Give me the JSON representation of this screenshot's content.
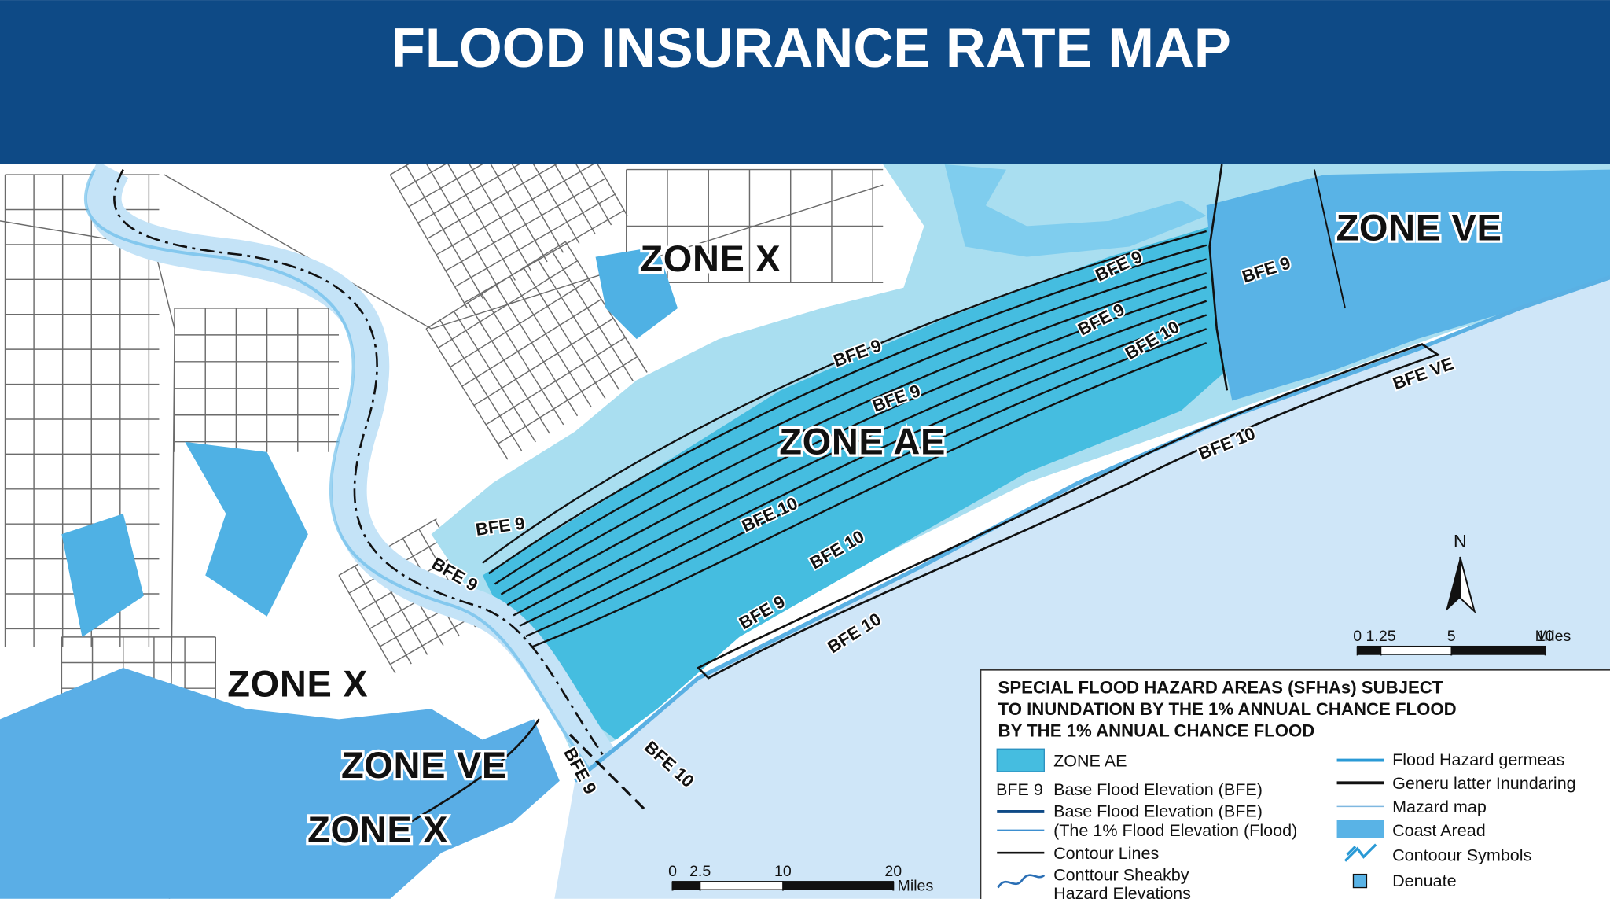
{
  "header": {
    "title": "FLOOD INSURANCE RATE MAP"
  },
  "map_labels": {
    "zones": [
      "ZONE X",
      "ZONE VE",
      "ZONE AE",
      "ZONE X",
      "ZONE VE",
      "ZONE X"
    ],
    "bfe": [
      "BFE 9",
      "BFE 9",
      "BFE 9",
      "BFE 10",
      "BFE 9",
      "BFE 9",
      "BFE VE",
      "BFE 10",
      "BFE 9",
      "BFE 10",
      "BFE 9",
      "BFE 10",
      "BFE 9",
      "BFE 10",
      "BFE 9",
      "BFE 10"
    ]
  },
  "north_arrow": "N",
  "scale_bars": [
    {
      "ticks": [
        0,
        1.25,
        5,
        10
      ],
      "unit": "Miles"
    },
    {
      "ticks": [
        0,
        2.5,
        10,
        20
      ],
      "unit": "Miles"
    }
  ],
  "legend": {
    "title": [
      "SPECIAL FLOOD HAZARD AREAS (SFHAs) SUBJECT",
      "TO INUNDATION BY THE 1% ANNUAL CHANCE FLOOD",
      "BY THE 1% ANNUAL CHANCE FLOOD"
    ],
    "left": [
      {
        "label": "ZONE AE"
      },
      {
        "symbol": "BFE 9",
        "label": "Base Flood Elevation (BFE)"
      },
      {
        "label": "Base Flood Elevation (BFE)"
      },
      {
        "label": "(The 1% Flood Elevation (Flood)"
      },
      {
        "label": "Contour Lines"
      },
      {
        "label": "Conttour Sheakby"
      },
      {
        "label": "Hazard Elevations"
      }
    ],
    "right": [
      "Flood Hazard germeas",
      "Generu latter Inundaring",
      "Mazard map",
      "Coast Aread",
      "Contoour Symbols",
      "Denuate"
    ]
  }
}
